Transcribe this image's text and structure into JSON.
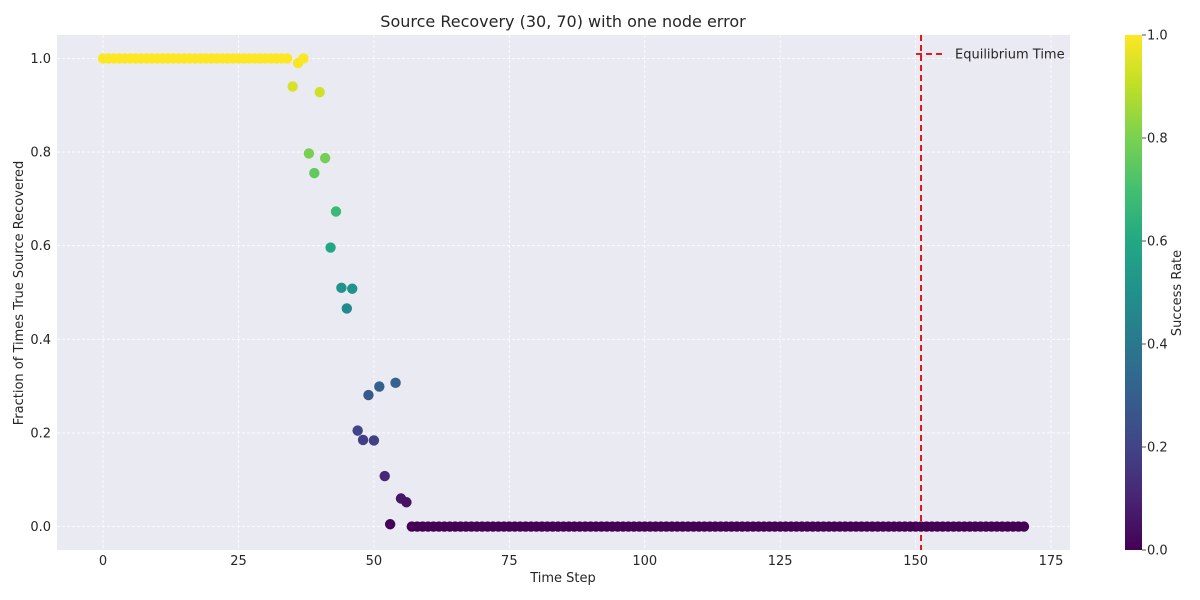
{
  "chart_data": {
    "type": "scatter",
    "title": "Source Recovery (30, 70) with one node error",
    "xlabel": "Time Step",
    "ylabel": "Fraction of Times True Source Recovered",
    "xlim": [
      -8.5,
      178.5
    ],
    "ylim": [
      -0.05,
      1.05
    ],
    "xticks": [
      0,
      25,
      50,
      75,
      100,
      125,
      150,
      175
    ],
    "yticks": [
      0.0,
      0.2,
      0.4,
      0.6,
      0.8,
      1.0
    ],
    "xtick_labels": [
      "0",
      "25",
      "50",
      "75",
      "100",
      "125",
      "150",
      "175"
    ],
    "ytick_labels": [
      "0.0",
      "0.2",
      "0.4",
      "0.6",
      "0.8",
      "1.0"
    ],
    "grid": true,
    "colormap": "viridis",
    "colorbar": {
      "label": "Success Rate",
      "range": [
        0.0,
        1.0
      ],
      "ticks": [
        0.0,
        0.2,
        0.4,
        0.6,
        0.8,
        1.0
      ],
      "tick_labels": [
        "0.0",
        "0.2",
        "0.4",
        "0.6",
        "0.8",
        "1.0"
      ]
    },
    "equilibrium_time": 151,
    "legend": {
      "label": "Equilibrium Time",
      "placement": "top-right"
    },
    "colors": {
      "equilibrium_line": "#e00000",
      "plot_background": "#eaeaf2",
      "grid": "#ffffff"
    },
    "points": [
      {
        "x": 0,
        "y": 1.0
      },
      {
        "x": 1,
        "y": 1.0
      },
      {
        "x": 2,
        "y": 1.0
      },
      {
        "x": 3,
        "y": 1.0
      },
      {
        "x": 4,
        "y": 1.0
      },
      {
        "x": 5,
        "y": 1.0
      },
      {
        "x": 6,
        "y": 1.0
      },
      {
        "x": 7,
        "y": 1.0
      },
      {
        "x": 8,
        "y": 1.0
      },
      {
        "x": 9,
        "y": 1.0
      },
      {
        "x": 10,
        "y": 1.0
      },
      {
        "x": 11,
        "y": 1.0
      },
      {
        "x": 12,
        "y": 1.0
      },
      {
        "x": 13,
        "y": 1.0
      },
      {
        "x": 14,
        "y": 1.0
      },
      {
        "x": 15,
        "y": 1.0
      },
      {
        "x": 16,
        "y": 1.0
      },
      {
        "x": 17,
        "y": 1.0
      },
      {
        "x": 18,
        "y": 1.0
      },
      {
        "x": 19,
        "y": 1.0
      },
      {
        "x": 20,
        "y": 1.0
      },
      {
        "x": 21,
        "y": 1.0
      },
      {
        "x": 22,
        "y": 1.0
      },
      {
        "x": 23,
        "y": 1.0
      },
      {
        "x": 24,
        "y": 1.0
      },
      {
        "x": 25,
        "y": 1.0
      },
      {
        "x": 26,
        "y": 1.0
      },
      {
        "x": 27,
        "y": 1.0
      },
      {
        "x": 28,
        "y": 1.0
      },
      {
        "x": 29,
        "y": 1.0
      },
      {
        "x": 30,
        "y": 1.0
      },
      {
        "x": 31,
        "y": 1.0
      },
      {
        "x": 32,
        "y": 1.0
      },
      {
        "x": 33,
        "y": 1.0
      },
      {
        "x": 34,
        "y": 1.0
      },
      {
        "x": 35,
        "y": 0.94
      },
      {
        "x": 36,
        "y": 0.99
      },
      {
        "x": 37,
        "y": 1.0
      },
      {
        "x": 38,
        "y": 0.797
      },
      {
        "x": 39,
        "y": 0.755
      },
      {
        "x": 40,
        "y": 0.928
      },
      {
        "x": 41,
        "y": 0.787
      },
      {
        "x": 42,
        "y": 0.596
      },
      {
        "x": 43,
        "y": 0.673
      },
      {
        "x": 44,
        "y": 0.51
      },
      {
        "x": 45,
        "y": 0.466
      },
      {
        "x": 46,
        "y": 0.508
      },
      {
        "x": 47,
        "y": 0.205
      },
      {
        "x": 48,
        "y": 0.185
      },
      {
        "x": 49,
        "y": 0.281
      },
      {
        "x": 50,
        "y": 0.184
      },
      {
        "x": 51,
        "y": 0.299
      },
      {
        "x": 52,
        "y": 0.108
      },
      {
        "x": 53,
        "y": 0.005
      },
      {
        "x": 54,
        "y": 0.307
      },
      {
        "x": 55,
        "y": 0.06
      },
      {
        "x": 56,
        "y": 0.052
      },
      {
        "x": 57,
        "y": 0.0
      },
      {
        "x": 58,
        "y": 0.0
      },
      {
        "x": 59,
        "y": 0.0
      },
      {
        "x": 60,
        "y": 0.0
      },
      {
        "x": 61,
        "y": 0.0
      },
      {
        "x": 62,
        "y": 0.0
      },
      {
        "x": 63,
        "y": 0.0
      },
      {
        "x": 64,
        "y": 0.0
      },
      {
        "x": 65,
        "y": 0.0
      },
      {
        "x": 66,
        "y": 0.0
      },
      {
        "x": 67,
        "y": 0.0
      },
      {
        "x": 68,
        "y": 0.0
      },
      {
        "x": 69,
        "y": 0.0
      },
      {
        "x": 70,
        "y": 0.0
      },
      {
        "x": 71,
        "y": 0.0
      },
      {
        "x": 72,
        "y": 0.0
      },
      {
        "x": 73,
        "y": 0.0
      },
      {
        "x": 74,
        "y": 0.0
      },
      {
        "x": 75,
        "y": 0.0
      },
      {
        "x": 76,
        "y": 0.0
      },
      {
        "x": 77,
        "y": 0.0
      },
      {
        "x": 78,
        "y": 0.0
      },
      {
        "x": 79,
        "y": 0.0
      },
      {
        "x": 80,
        "y": 0.0
      },
      {
        "x": 81,
        "y": 0.0
      },
      {
        "x": 82,
        "y": 0.0
      },
      {
        "x": 83,
        "y": 0.0
      },
      {
        "x": 84,
        "y": 0.0
      },
      {
        "x": 85,
        "y": 0.0
      },
      {
        "x": 86,
        "y": 0.0
      },
      {
        "x": 87,
        "y": 0.0
      },
      {
        "x": 88,
        "y": 0.0
      },
      {
        "x": 89,
        "y": 0.0
      },
      {
        "x": 90,
        "y": 0.0
      },
      {
        "x": 91,
        "y": 0.0
      },
      {
        "x": 92,
        "y": 0.0
      },
      {
        "x": 93,
        "y": 0.0
      },
      {
        "x": 94,
        "y": 0.0
      },
      {
        "x": 95,
        "y": 0.0
      },
      {
        "x": 96,
        "y": 0.0
      },
      {
        "x": 97,
        "y": 0.0
      },
      {
        "x": 98,
        "y": 0.0
      },
      {
        "x": 99,
        "y": 0.0
      },
      {
        "x": 100,
        "y": 0.0
      },
      {
        "x": 101,
        "y": 0.0
      },
      {
        "x": 102,
        "y": 0.0
      },
      {
        "x": 103,
        "y": 0.0
      },
      {
        "x": 104,
        "y": 0.0
      },
      {
        "x": 105,
        "y": 0.0
      },
      {
        "x": 106,
        "y": 0.0
      },
      {
        "x": 107,
        "y": 0.0
      },
      {
        "x": 108,
        "y": 0.0
      },
      {
        "x": 109,
        "y": 0.0
      },
      {
        "x": 110,
        "y": 0.0
      },
      {
        "x": 111,
        "y": 0.0
      },
      {
        "x": 112,
        "y": 0.0
      },
      {
        "x": 113,
        "y": 0.0
      },
      {
        "x": 114,
        "y": 0.0
      },
      {
        "x": 115,
        "y": 0.0
      },
      {
        "x": 116,
        "y": 0.0
      },
      {
        "x": 117,
        "y": 0.0
      },
      {
        "x": 118,
        "y": 0.0
      },
      {
        "x": 119,
        "y": 0.0
      },
      {
        "x": 120,
        "y": 0.0
      },
      {
        "x": 121,
        "y": 0.0
      },
      {
        "x": 122,
        "y": 0.0
      },
      {
        "x": 123,
        "y": 0.0
      },
      {
        "x": 124,
        "y": 0.0
      },
      {
        "x": 125,
        "y": 0.0
      },
      {
        "x": 126,
        "y": 0.0
      },
      {
        "x": 127,
        "y": 0.0
      },
      {
        "x": 128,
        "y": 0.0
      },
      {
        "x": 129,
        "y": 0.0
      },
      {
        "x": 130,
        "y": 0.0
      },
      {
        "x": 131,
        "y": 0.0
      },
      {
        "x": 132,
        "y": 0.0
      },
      {
        "x": 133,
        "y": 0.0
      },
      {
        "x": 134,
        "y": 0.0
      },
      {
        "x": 135,
        "y": 0.0
      },
      {
        "x": 136,
        "y": 0.0
      },
      {
        "x": 137,
        "y": 0.0
      },
      {
        "x": 138,
        "y": 0.0
      },
      {
        "x": 139,
        "y": 0.0
      },
      {
        "x": 140,
        "y": 0.0
      },
      {
        "x": 141,
        "y": 0.0
      },
      {
        "x": 142,
        "y": 0.0
      },
      {
        "x": 143,
        "y": 0.0
      },
      {
        "x": 144,
        "y": 0.0
      },
      {
        "x": 145,
        "y": 0.0
      },
      {
        "x": 146,
        "y": 0.0
      },
      {
        "x": 147,
        "y": 0.0
      },
      {
        "x": 148,
        "y": 0.0
      },
      {
        "x": 149,
        "y": 0.0
      },
      {
        "x": 150,
        "y": 0.0
      },
      {
        "x": 151,
        "y": 0.0
      },
      {
        "x": 152,
        "y": 0.0
      },
      {
        "x": 153,
        "y": 0.0
      },
      {
        "x": 154,
        "y": 0.0
      },
      {
        "x": 155,
        "y": 0.0
      },
      {
        "x": 156,
        "y": 0.0
      },
      {
        "x": 157,
        "y": 0.0
      },
      {
        "x": 158,
        "y": 0.0
      },
      {
        "x": 159,
        "y": 0.0
      },
      {
        "x": 160,
        "y": 0.0
      },
      {
        "x": 161,
        "y": 0.0
      },
      {
        "x": 162,
        "y": 0.0
      },
      {
        "x": 163,
        "y": 0.0
      },
      {
        "x": 164,
        "y": 0.0
      },
      {
        "x": 165,
        "y": 0.0
      },
      {
        "x": 166,
        "y": 0.0
      },
      {
        "x": 167,
        "y": 0.0
      },
      {
        "x": 168,
        "y": 0.0
      },
      {
        "x": 169,
        "y": 0.0
      },
      {
        "x": 170,
        "y": 0.0
      }
    ]
  }
}
